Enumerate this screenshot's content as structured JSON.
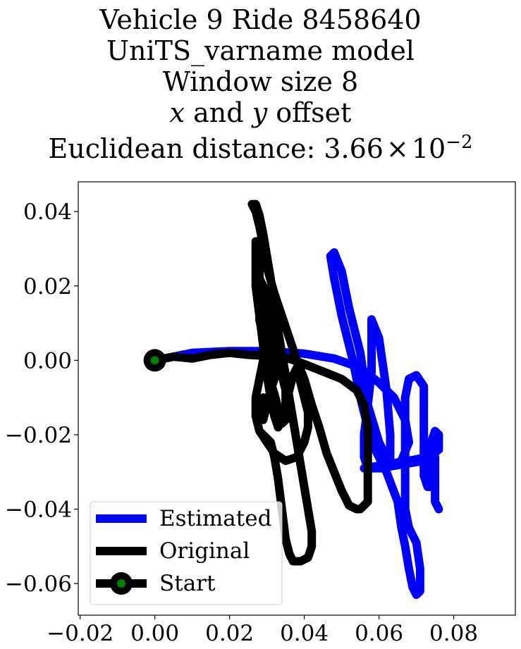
{
  "chart_data": {
    "type": "line",
    "title_lines": [
      "Vehicle 9 Ride 8458640",
      "UniTS_varname model",
      "Window size 8",
      "x and y offset",
      "Euclidean distance: 3.66×10⁻²"
    ],
    "title_parts": {
      "line4_x": "x",
      "line4_and": " and ",
      "line4_y": "y",
      "line4_offset": " offset",
      "line5_prefix": "Euclidean distance: 3.66",
      "line5_times": "×",
      "line5_base": "10",
      "line5_exp": "−2"
    },
    "xlabel": "",
    "ylabel": "",
    "xlim": [
      -0.0205,
      0.0965
    ],
    "ylim": [
      -0.0685,
      0.048
    ],
    "x_ticks": [
      -0.02,
      0.0,
      0.02,
      0.04,
      0.06,
      0.08
    ],
    "x_tick_labels": [
      "−0.02",
      "0.00",
      "0.02",
      "0.04",
      "0.06",
      "0.08"
    ],
    "y_ticks": [
      0.04,
      0.02,
      0.0,
      -0.02,
      -0.04,
      -0.06
    ],
    "y_tick_labels": [
      "0.04",
      "0.02",
      "0.00",
      "−0.02",
      "−0.04",
      "−0.06"
    ],
    "grid": false,
    "legend_placement": "lower-left",
    "series": [
      {
        "name": "Estimated",
        "color": "#0000ff",
        "points": [
          [
            0.0,
            0.0
          ],
          [
            0.01,
            0.002
          ],
          [
            0.02,
            0.0025
          ],
          [
            0.03,
            0.0025
          ],
          [
            0.04,
            0.0018
          ],
          [
            0.048,
            0.0005
          ],
          [
            0.055,
            -0.002
          ],
          [
            0.06,
            -0.006
          ],
          [
            0.064,
            -0.01
          ],
          [
            0.067,
            -0.016
          ],
          [
            0.068,
            -0.022
          ],
          [
            0.066,
            -0.027
          ],
          [
            0.062,
            -0.029
          ],
          [
            0.057,
            -0.029
          ],
          [
            0.056,
            -0.026
          ],
          [
            0.056,
            -0.02
          ],
          [
            0.057,
            -0.012
          ],
          [
            0.058,
            -0.003
          ],
          [
            0.058,
            0.006
          ],
          [
            0.058,
            0.011
          ],
          [
            0.06,
            0.006
          ],
          [
            0.062,
            -0.008
          ],
          [
            0.063,
            -0.02
          ],
          [
            0.063,
            -0.028
          ],
          [
            0.06,
            -0.022
          ],
          [
            0.057,
            -0.012
          ],
          [
            0.055,
            0.002
          ],
          [
            0.052,
            0.014
          ],
          [
            0.05,
            0.024
          ],
          [
            0.048,
            0.029
          ],
          [
            0.047,
            0.028
          ],
          [
            0.048,
            0.022
          ],
          [
            0.05,
            0.012
          ],
          [
            0.053,
            0.0
          ],
          [
            0.055,
            -0.01
          ],
          [
            0.058,
            -0.022
          ],
          [
            0.062,
            -0.03
          ],
          [
            0.065,
            -0.038
          ],
          [
            0.066,
            -0.045
          ],
          [
            0.067,
            -0.05
          ],
          [
            0.068,
            -0.056
          ],
          [
            0.069,
            -0.061
          ],
          [
            0.07,
            -0.063
          ],
          [
            0.071,
            -0.062
          ],
          [
            0.071,
            -0.056
          ],
          [
            0.07,
            -0.049
          ],
          [
            0.068,
            -0.045
          ],
          [
            0.067,
            -0.04
          ],
          [
            0.067,
            -0.034
          ],
          [
            0.067,
            -0.027
          ],
          [
            0.067,
            -0.018
          ],
          [
            0.067,
            -0.01
          ],
          [
            0.068,
            -0.005
          ],
          [
            0.07,
            -0.004
          ],
          [
            0.072,
            -0.007
          ],
          [
            0.072,
            -0.013
          ],
          [
            0.072,
            -0.02
          ],
          [
            0.072,
            -0.026
          ],
          [
            0.072,
            -0.031
          ],
          [
            0.073,
            -0.034
          ],
          [
            0.074,
            -0.034
          ],
          [
            0.074,
            -0.028
          ],
          [
            0.074,
            -0.022
          ],
          [
            0.075,
            -0.019
          ],
          [
            0.076,
            -0.02
          ],
          [
            0.076,
            -0.024
          ],
          [
            0.072,
            -0.027
          ],
          [
            0.066,
            -0.028
          ],
          [
            0.06,
            -0.029
          ],
          [
            0.056,
            -0.029
          ],
          [
            0.062,
            -0.028
          ],
          [
            0.068,
            -0.027
          ],
          [
            0.073,
            -0.026
          ],
          [
            0.075,
            -0.026
          ],
          [
            0.075,
            -0.03
          ],
          [
            0.075,
            -0.034
          ],
          [
            0.075,
            -0.038
          ],
          [
            0.076,
            -0.04
          ]
        ]
      },
      {
        "name": "Original",
        "color": "#000000",
        "points": [
          [
            0.0,
            0.0
          ],
          [
            0.005,
            0.001
          ],
          [
            0.01,
            0.0005
          ],
          [
            0.015,
            0.0015
          ],
          [
            0.02,
            0.002
          ],
          [
            0.025,
            0.0015
          ],
          [
            0.03,
            0.0012
          ],
          [
            0.035,
            0.0008
          ],
          [
            0.04,
            -0.001
          ],
          [
            0.045,
            -0.003
          ],
          [
            0.05,
            -0.005
          ],
          [
            0.054,
            -0.008
          ],
          [
            0.056,
            -0.012
          ],
          [
            0.057,
            -0.018
          ],
          [
            0.057,
            -0.024
          ],
          [
            0.057,
            -0.03
          ],
          [
            0.057,
            -0.035
          ],
          [
            0.057,
            -0.038
          ],
          [
            0.056,
            -0.039
          ],
          [
            0.055,
            -0.04
          ],
          [
            0.054,
            -0.04
          ],
          [
            0.052,
            -0.039
          ],
          [
            0.05,
            -0.035
          ],
          [
            0.048,
            -0.03
          ],
          [
            0.046,
            -0.025
          ],
          [
            0.044,
            -0.018
          ],
          [
            0.042,
            -0.012
          ],
          [
            0.04,
            -0.005
          ],
          [
            0.038,
            0.0
          ],
          [
            0.036,
            0.006
          ],
          [
            0.034,
            0.012
          ],
          [
            0.032,
            0.018
          ],
          [
            0.03,
            0.025
          ],
          [
            0.029,
            0.031
          ],
          [
            0.028,
            0.036
          ],
          [
            0.027,
            0.04
          ],
          [
            0.026,
            0.042
          ],
          [
            0.027,
            0.042
          ],
          [
            0.028,
            0.039
          ],
          [
            0.029,
            0.034
          ],
          [
            0.03,
            0.028
          ],
          [
            0.031,
            0.022
          ],
          [
            0.032,
            0.015
          ],
          [
            0.033,
            0.008
          ],
          [
            0.034,
            0.002
          ],
          [
            0.035,
            -0.004
          ],
          [
            0.036,
            -0.01
          ],
          [
            0.037,
            -0.016
          ],
          [
            0.038,
            -0.022
          ],
          [
            0.039,
            -0.028
          ],
          [
            0.04,
            -0.034
          ],
          [
            0.041,
            -0.04
          ],
          [
            0.042,
            -0.046
          ],
          [
            0.042,
            -0.05
          ],
          [
            0.041,
            -0.053
          ],
          [
            0.039,
            -0.054
          ],
          [
            0.037,
            -0.054
          ],
          [
            0.036,
            -0.052
          ],
          [
            0.035,
            -0.048
          ],
          [
            0.034,
            -0.04
          ],
          [
            0.033,
            -0.032
          ],
          [
            0.032,
            -0.026
          ],
          [
            0.031,
            -0.022
          ],
          [
            0.028,
            -0.019
          ],
          [
            0.027,
            -0.015
          ],
          [
            0.027,
            -0.01
          ],
          [
            0.028,
            -0.005
          ],
          [
            0.029,
            0.0
          ],
          [
            0.029,
            0.006
          ],
          [
            0.028,
            0.011
          ],
          [
            0.028,
            0.017
          ],
          [
            0.028,
            0.023
          ],
          [
            0.028,
            0.029
          ],
          [
            0.028,
            0.032
          ],
          [
            0.027,
            0.032
          ],
          [
            0.027,
            0.027
          ],
          [
            0.027,
            0.02
          ],
          [
            0.028,
            0.012
          ],
          [
            0.029,
            0.004
          ],
          [
            0.03,
            -0.004
          ],
          [
            0.031,
            -0.01
          ],
          [
            0.032,
            -0.015
          ],
          [
            0.033,
            -0.018
          ],
          [
            0.034,
            -0.016
          ],
          [
            0.035,
            -0.012
          ],
          [
            0.036,
            -0.008
          ],
          [
            0.037,
            -0.004
          ],
          [
            0.038,
            -0.002
          ],
          [
            0.039,
            -0.006
          ],
          [
            0.04,
            -0.01
          ],
          [
            0.041,
            -0.014
          ],
          [
            0.041,
            -0.018
          ],
          [
            0.04,
            -0.022
          ],
          [
            0.038,
            -0.026
          ],
          [
            0.035,
            -0.027
          ],
          [
            0.032,
            -0.025
          ],
          [
            0.03,
            -0.022
          ],
          [
            0.028,
            -0.019
          ],
          [
            0.027,
            -0.015
          ],
          [
            0.028,
            -0.012
          ],
          [
            0.029,
            -0.01
          ],
          [
            0.029,
            -0.014
          ],
          [
            0.029,
            -0.016
          ],
          [
            0.03,
            -0.012
          ],
          [
            0.031,
            -0.008
          ],
          [
            0.032,
            -0.005
          ],
          [
            0.032,
            -0.002
          ],
          [
            0.031,
            0.002
          ],
          [
            0.03,
            0.006
          ],
          [
            0.029,
            0.01
          ],
          [
            0.028,
            0.014
          ],
          [
            0.028,
            0.018
          ],
          [
            0.028,
            0.022
          ],
          [
            0.029,
            0.02
          ],
          [
            0.03,
            0.016
          ],
          [
            0.031,
            0.01
          ],
          [
            0.032,
            0.004
          ],
          [
            0.033,
            0.0
          ],
          [
            0.034,
            -0.004
          ],
          [
            0.035,
            -0.008
          ],
          [
            0.035,
            -0.012
          ],
          [
            0.035,
            -0.016
          ],
          [
            0.034,
            -0.017
          ],
          [
            0.033,
            -0.013
          ],
          [
            0.032,
            -0.009
          ],
          [
            0.031,
            -0.006
          ],
          [
            0.03,
            -0.004
          ]
        ]
      }
    ],
    "start_point": {
      "name": "Start",
      "x": 0.0,
      "y": 0.0,
      "outer_color": "#000000",
      "inner_color": "#008000"
    },
    "legend": {
      "entries": [
        {
          "label": "Estimated",
          "color": "#0000ff",
          "kind": "line"
        },
        {
          "label": "Original",
          "color": "#000000",
          "kind": "line"
        },
        {
          "label": "Start",
          "color": "#000000",
          "kind": "marker-line",
          "inner_color": "#008000"
        }
      ]
    }
  }
}
